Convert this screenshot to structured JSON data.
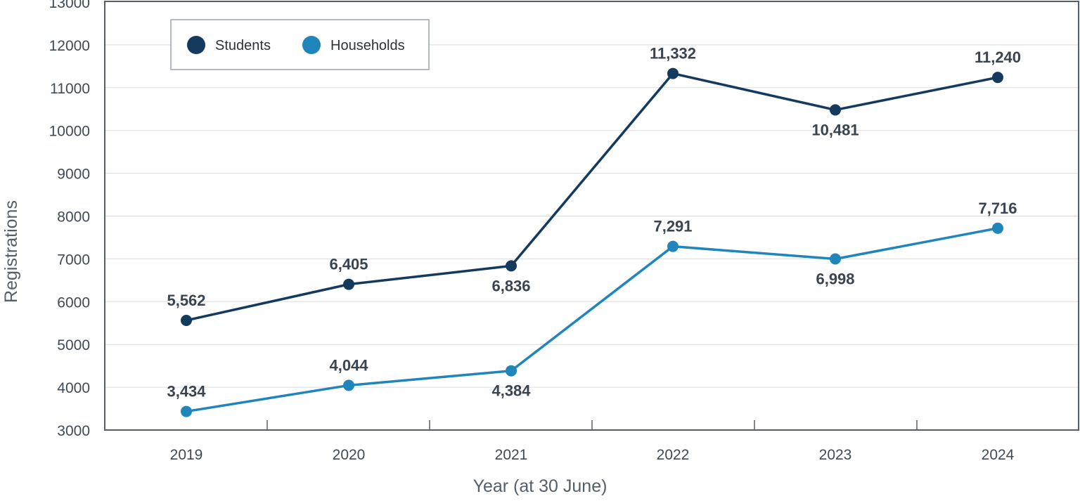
{
  "chart_data": {
    "type": "line",
    "categories": [
      "2019",
      "2020",
      "2021",
      "2022",
      "2023",
      "2024"
    ],
    "series": [
      {
        "name": "Students",
        "color": "#143a5e",
        "values": [
          5562,
          6405,
          6836,
          11332,
          10481,
          11240
        ],
        "labels": [
          "5,562",
          "6,405",
          "6,836",
          "11,332",
          "10,481",
          "11,240"
        ],
        "label_positions": [
          "above",
          "above",
          "below",
          "above",
          "below",
          "above"
        ]
      },
      {
        "name": "Households",
        "color": "#1f85ba",
        "values": [
          3434,
          4044,
          4384,
          7291,
          6998,
          7716
        ],
        "labels": [
          "3,434",
          "4,044",
          "4,384",
          "7,291",
          "6,998",
          "7,716"
        ],
        "label_positions": [
          "above",
          "above",
          "below",
          "above",
          "below",
          "above"
        ]
      }
    ],
    "title": "",
    "xlabel": "Year (at 30 June)",
    "ylabel": "Registrations",
    "ylim": [
      3000,
      13000
    ],
    "yticks": [
      "3000",
      "4000",
      "5000",
      "6000",
      "7000",
      "8000",
      "9000",
      "10000",
      "11000",
      "12000",
      "13000"
    ],
    "grid": "horizontal",
    "legend": "top-left"
  }
}
